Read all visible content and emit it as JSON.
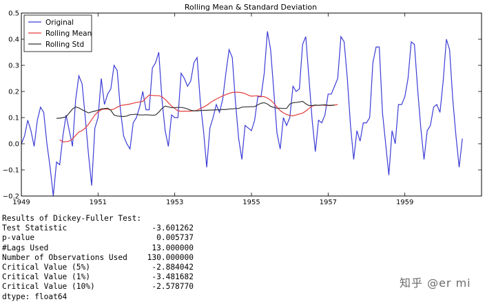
{
  "chart_data": {
    "type": "line",
    "title": "Rolling Mean & Standard Deviation",
    "xlabel": "",
    "ylabel": "",
    "xlim": [
      1949.0,
      1961.0
    ],
    "ylim": [
      -0.2,
      0.5
    ],
    "xticks": [
      "1949",
      "1951",
      "1953",
      "1955",
      "1957",
      "1959"
    ],
    "yticks": [
      "−0.2",
      "−0.1",
      "0.0",
      "0.1",
      "0.2",
      "0.3",
      "0.4",
      "0.5"
    ],
    "legend_position": "top-left",
    "grid": false,
    "x_step_months": 1,
    "series": [
      {
        "name": "Original",
        "color": "#3b3bd6",
        "values": [
          0.0,
          0.03,
          0.09,
          0.05,
          -0.01,
          0.09,
          0.14,
          0.12,
          0.0,
          -0.09,
          -0.2,
          -0.07,
          -0.08,
          0.03,
          0.11,
          0.05,
          -0.01,
          0.17,
          0.26,
          0.23,
          0.1,
          -0.04,
          -0.16,
          0.06,
          0.1,
          0.25,
          0.15,
          0.19,
          0.21,
          0.3,
          0.28,
          0.13,
          0.03,
          0.0,
          -0.02,
          0.08,
          0.1,
          0.14,
          0.2,
          0.13,
          0.13,
          0.29,
          0.31,
          0.35,
          0.17,
          0.05,
          -0.01,
          0.11,
          0.1,
          0.1,
          0.27,
          0.25,
          0.22,
          0.24,
          0.31,
          0.33,
          0.16,
          0.05,
          -0.09,
          0.06,
          0.1,
          0.15,
          0.12,
          0.17,
          0.27,
          0.36,
          0.33,
          0.16,
          0.02,
          -0.06,
          0.07,
          0.06,
          0.05,
          0.09,
          0.18,
          0.18,
          0.27,
          0.43,
          0.36,
          0.2,
          0.04,
          -0.02,
          0.1,
          0.07,
          0.1,
          0.22,
          0.2,
          0.21,
          0.38,
          0.41,
          0.25,
          0.09,
          -0.03,
          0.09,
          0.08,
          0.11,
          0.19,
          0.19,
          0.22,
          0.25,
          0.41,
          0.39,
          0.25,
          0.07,
          -0.06,
          0.05,
          0.01,
          0.08,
          0.08,
          0.1,
          0.31,
          0.37,
          0.37,
          0.12,
          0.0,
          -0.12,
          0.05,
          0.0,
          0.15,
          0.15,
          0.18,
          0.25,
          0.39,
          0.38,
          0.21,
          0.06,
          -0.06,
          0.05,
          0.07,
          0.14,
          0.15,
          0.12,
          0.24,
          0.4,
          0.36,
          0.17,
          0.03,
          -0.09,
          0.02
        ]
      },
      {
        "name": "Rolling Mean",
        "color": "#e33a3a",
        "values": [
          0.015,
          0.007,
          0.008,
          0.01,
          0.018,
          0.032,
          0.045,
          0.05,
          0.06,
          0.074,
          0.092,
          0.11,
          0.122,
          0.13,
          0.133,
          0.132,
          0.13,
          0.133,
          0.14,
          0.146,
          0.148,
          0.15,
          0.152,
          0.155,
          0.158,
          0.16,
          0.162,
          0.175,
          0.186,
          0.185,
          0.184,
          0.184,
          0.18,
          0.17,
          0.157,
          0.144,
          0.135,
          0.126,
          0.124,
          0.125,
          0.124,
          0.125,
          0.126,
          0.128,
          0.135,
          0.14,
          0.147,
          0.156,
          0.164,
          0.171,
          0.177,
          0.183,
          0.188,
          0.193,
          0.196,
          0.197,
          0.197,
          0.195,
          0.192,
          0.186,
          0.182,
          0.183,
          0.183,
          0.181,
          0.18,
          0.175,
          0.167,
          0.155,
          0.14,
          0.127,
          0.118,
          0.112,
          0.108,
          0.107,
          0.11,
          0.114,
          0.117,
          0.125,
          0.135,
          0.144,
          0.147,
          0.147,
          0.148,
          0.147,
          0.146,
          0.146,
          0.148,
          0.15
        ]
      },
      {
        "name": "Rolling Std",
        "color": "#333333",
        "values": [
          0.097,
          0.098,
          0.1,
          0.103,
          0.118,
          0.133,
          0.141,
          0.137,
          0.13,
          0.124,
          0.118,
          0.122,
          0.125,
          0.128,
          0.133,
          0.135,
          0.136,
          0.128,
          0.11,
          0.106,
          0.105,
          0.104,
          0.106,
          0.111,
          0.112,
          0.113,
          0.11,
          0.11,
          0.111,
          0.11,
          0.109,
          0.11,
          0.121,
          0.135,
          0.144,
          0.141,
          0.138,
          0.138,
          0.139,
          0.139,
          0.137,
          0.133,
          0.128,
          0.126,
          0.126,
          0.127,
          0.128,
          0.128,
          0.129,
          0.129,
          0.13,
          0.13,
          0.131,
          0.131,
          0.133,
          0.133,
          0.135,
          0.135,
          0.14,
          0.141,
          0.141,
          0.142,
          0.142,
          0.149,
          0.155,
          0.157,
          0.152,
          0.143,
          0.139,
          0.136,
          0.136,
          0.135,
          0.135,
          0.152,
          0.157,
          0.158,
          0.16,
          0.162,
          0.153,
          0.146,
          0.146,
          0.148,
          0.147,
          0.148,
          0.149,
          0.147,
          0.147,
          0.148
        ]
      }
    ],
    "series_start": [
      1949.0,
      1950.0,
      1949.917
    ]
  },
  "adf": {
    "heading": "Results of Dickey-Fuller Test:",
    "rows": [
      {
        "label": "Test Statistic",
        "value": "-3.601262"
      },
      {
        "label": "p-value",
        "value": "0.005737"
      },
      {
        "label": "#Lags Used",
        "value": "13.000000"
      },
      {
        "label": "Number of Observations Used",
        "value": "130.000000"
      },
      {
        "label": "Critical Value (5%)",
        "value": "-2.884042"
      },
      {
        "label": "Critical Value (1%)",
        "value": "-3.481682"
      },
      {
        "label": "Critical Value (10%)",
        "value": "-2.578770"
      }
    ],
    "dtype": "dtype: float64"
  },
  "watermark": "知乎 @er mi"
}
